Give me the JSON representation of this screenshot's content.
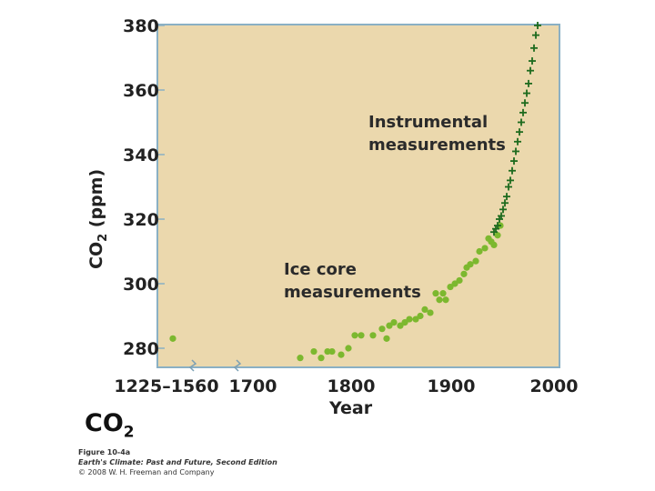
{
  "chart_data": {
    "type": "scatter",
    "ylabel_main": "CO",
    "ylabel_sub": "2",
    "ylabel_unit": " (ppm)",
    "xlabel": "Year",
    "ylim": [
      275,
      380
    ],
    "yticks": [
      280,
      300,
      320,
      340,
      360,
      380
    ],
    "xtick_labels": [
      "1225–1560",
      "1700",
      "1800",
      "1900",
      "2000"
    ],
    "grid": false,
    "axis_break": true,
    "annotations": {
      "instrumental_line1": "Instrumental",
      "instrumental_line2": "measurements",
      "icecore_line1": "Ice core",
      "icecore_line2": "measurements"
    },
    "series": [
      {
        "marker": "circle",
        "color": "#7cb82f",
        "points": [
          [
            1225,
            283
          ],
          [
            1745,
            277
          ],
          [
            1760,
            279
          ],
          [
            1768,
            277
          ],
          [
            1775,
            279
          ],
          [
            1780,
            279
          ],
          [
            1790,
            278
          ],
          [
            1798,
            280
          ],
          [
            1805,
            284
          ],
          [
            1812,
            284
          ],
          [
            1825,
            284
          ],
          [
            1835,
            286
          ],
          [
            1840,
            283
          ],
          [
            1843,
            287
          ],
          [
            1848,
            288
          ],
          [
            1855,
            287
          ],
          [
            1860,
            288
          ],
          [
            1865,
            289
          ],
          [
            1872,
            289
          ],
          [
            1877,
            290
          ],
          [
            1882,
            292
          ],
          [
            1888,
            291
          ],
          [
            1894,
            297
          ],
          [
            1898,
            295
          ],
          [
            1902,
            297
          ],
          [
            1905,
            295
          ],
          [
            1910,
            299
          ],
          [
            1915,
            300
          ],
          [
            1920,
            301
          ],
          [
            1925,
            303
          ],
          [
            1928,
            305
          ],
          [
            1932,
            306
          ],
          [
            1938,
            307
          ],
          [
            1942,
            310
          ],
          [
            1948,
            311
          ],
          [
            1952,
            314
          ],
          [
            1955,
            313
          ],
          [
            1958,
            312
          ],
          [
            1962,
            315
          ],
          [
            1965,
            318
          ]
        ]
      },
      {
        "marker": "plus",
        "color": "#1e6b1e",
        "points": [
          [
            1958,
            316
          ],
          [
            1960,
            317
          ],
          [
            1962,
            318
          ],
          [
            1964,
            320
          ],
          [
            1966,
            321
          ],
          [
            1968,
            323
          ],
          [
            1970,
            325
          ],
          [
            1972,
            327
          ],
          [
            1974,
            330
          ],
          [
            1976,
            332
          ],
          [
            1978,
            335
          ],
          [
            1980,
            338
          ],
          [
            1982,
            341
          ],
          [
            1984,
            344
          ],
          [
            1986,
            347
          ],
          [
            1988,
            350
          ],
          [
            1990,
            353
          ],
          [
            1992,
            356
          ],
          [
            1994,
            359
          ],
          [
            1996,
            362
          ],
          [
            1998,
            366
          ],
          [
            2000,
            369
          ],
          [
            2002,
            373
          ],
          [
            2004,
            377
          ],
          [
            2006,
            380
          ]
        ]
      }
    ]
  },
  "footer": {
    "co2_main": "CO",
    "co2_sub": "2",
    "figure_label": "Figure 10-4a",
    "book_title": "Earth's Climate: Past and Future, Second Edition",
    "copyright": "© 2008 W. H. Freeman and Company"
  }
}
